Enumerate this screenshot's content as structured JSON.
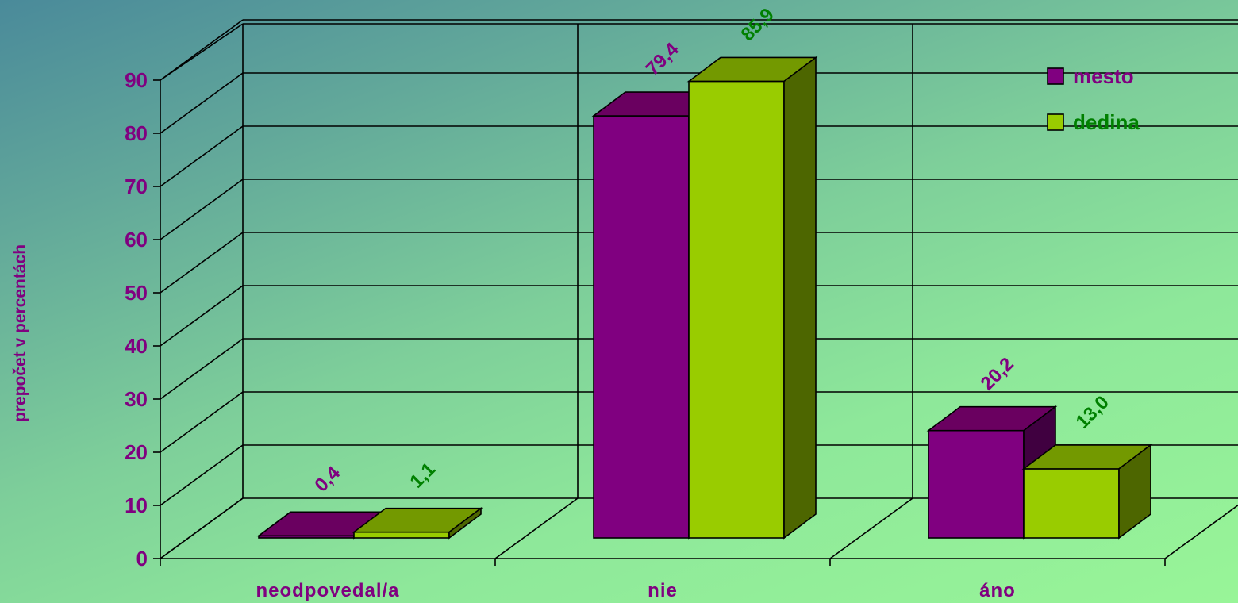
{
  "chart_data": {
    "type": "bar",
    "ylabel": "prepočet v percentách",
    "categories": [
      "neodpovedal/a",
      "nie",
      "áno"
    ],
    "y_ticks": [
      "0",
      "10",
      "20",
      "30",
      "40",
      "50",
      "60",
      "70",
      "80",
      "90"
    ],
    "ylim": [
      0,
      90
    ],
    "grid": true,
    "legend_position": "top-right",
    "series": [
      {
        "name": "mesto",
        "values": [
          0.4,
          79.4,
          20.2
        ],
        "labels": [
          "0,4",
          "79,4",
          "20,2"
        ],
        "color": "#800080",
        "top_color": "#6a0060",
        "side_color": "#400040",
        "label_color": "#800080"
      },
      {
        "name": "dedina",
        "values": [
          1.1,
          85.9,
          13.0
        ],
        "labels": [
          "1,1",
          "85,9",
          "13,0"
        ],
        "color": "#99cc00",
        "top_color": "#739900",
        "side_color": "#4d6600",
        "label_color": "#008000"
      }
    ]
  }
}
